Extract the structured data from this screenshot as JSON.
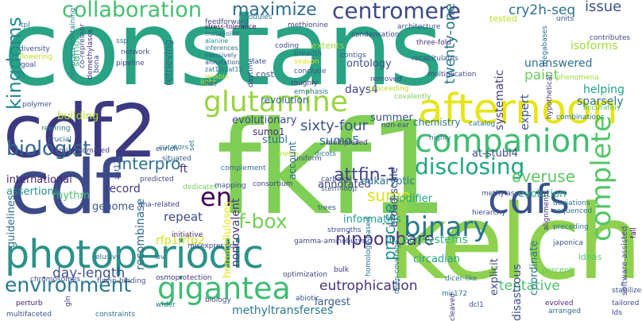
{
  "words": [
    {
      "text": "constans",
      "color": "#29a383"
    },
    {
      "text": "fkf1",
      "color": "#7fce55"
    },
    {
      "text": "kelch",
      "color": "#8fd14f"
    },
    {
      "text": "cdf2",
      "color": "#3b3a80"
    },
    {
      "text": "cdf",
      "color": "#3d4a89"
    },
    {
      "text": "photoperiodic",
      "color": "#2b9189"
    },
    {
      "text": "afternoon",
      "color": "#e7e419"
    },
    {
      "text": "glutamine",
      "color": "#98d43e"
    },
    {
      "text": "companion",
      "color": "#40bc72"
    },
    {
      "text": "cdfs",
      "color": "#3a518b"
    },
    {
      "text": "complete",
      "color": "#54c567"
    },
    {
      "text": "gigantea",
      "color": "#3fbc73"
    },
    {
      "text": "binary",
      "color": "#2a768e"
    },
    {
      "text": "collaboration",
      "color": "#45bf70"
    },
    {
      "text": "centromere",
      "color": "#3e4989"
    },
    {
      "text": "environment",
      "color": "#2a798e"
    },
    {
      "text": "maximize",
      "color": "#2e6d8e"
    },
    {
      "text": "kingdoms",
      "color": "#23898e"
    },
    {
      "text": "biologist",
      "color": "#31668e"
    },
    {
      "text": "disclosing",
      "color": "#21a585"
    },
    {
      "text": "f-box",
      "color": "#73d055"
    },
    {
      "text": "nipponbare",
      "color": "#46307e"
    },
    {
      "text": "issue",
      "color": "#3b518b"
    },
    {
      "text": "cry2h-seq",
      "color": "#2c728e"
    },
    {
      "text": "sumo",
      "color": "#d8e219"
    },
    {
      "text": "attfin-1",
      "color": "#414287"
    },
    {
      "text": "en",
      "color": "#440154"
    },
    {
      "text": "interpro",
      "color": "#2d708e"
    },
    {
      "text": "sixty-four",
      "color": "#3a548c"
    },
    {
      "text": "day-length",
      "color": "#3b528b"
    },
    {
      "text": "eutrophication",
      "color": "#46327e"
    },
    {
      "text": "tentative",
      "color": "#4ac16d"
    },
    {
      "text": "overuse",
      "color": "#5cc863"
    },
    {
      "text": "ontology",
      "color": "#3d4e8a"
    },
    {
      "text": "evolutionary",
      "color": "#3f4889"
    },
    {
      "text": "precise",
      "color": "#20938c"
    },
    {
      "text": "paint",
      "color": "#6ccd5a"
    },
    {
      "text": "sumo5",
      "color": "#2d708e"
    },
    {
      "text": "international",
      "color": "#482173"
    },
    {
      "text": "repeat",
      "color": "#3e4a89"
    },
    {
      "text": "methyltransferses",
      "color": "#2a788e"
    },
    {
      "text": "ecosystems",
      "color": "#31b57b"
    },
    {
      "text": "informatics",
      "color": "#1f9e89"
    },
    {
      "text": "noncovalent",
      "color": "#453781"
    },
    {
      "text": "twenty-one",
      "color": "#2a788e"
    },
    {
      "text": "days4",
      "color": "#404588"
    },
    {
      "text": "isoforms",
      "color": "#a0da39"
    },
    {
      "text": "unanswered",
      "color": "#2d708e"
    },
    {
      "text": "systematic",
      "color": "#443b84"
    },
    {
      "text": "helping",
      "color": "#1fa088"
    },
    {
      "text": "sparsely",
      "color": "#2c738e"
    },
    {
      "text": "expert",
      "color": "#3b528b"
    },
    {
      "text": "at-stubl4",
      "color": "#3e4c8a"
    },
    {
      "text": "modifier",
      "color": "#22a785"
    },
    {
      "text": "stubl",
      "color": "#2c728e"
    },
    {
      "text": "sumo1",
      "color": "#472a7a"
    },
    {
      "text": "summer",
      "color": "#3b528b"
    },
    {
      "text": "genome",
      "color": "#38588c"
    },
    {
      "text": "rhythm",
      "color": "#4ac16d"
    },
    {
      "text": "record",
      "color": "#453581"
    },
    {
      "text": "recombinase",
      "color": "#2f6b8e"
    },
    {
      "text": "assertions",
      "color": "#21918c"
    },
    {
      "text": "guidelines",
      "color": "#2c718e"
    },
    {
      "text": "circadian",
      "color": "#20a386"
    },
    {
      "text": "disastrous",
      "color": "#3d4e8a"
    },
    {
      "text": "coordinate",
      "color": "#297a8e"
    },
    {
      "text": "largest",
      "color": "#38598c"
    },
    {
      "text": "explicit",
      "color": "#3f4788"
    },
    {
      "text": "annotated",
      "color": "#433d84"
    },
    {
      "text": "eukaryotic",
      "color": "#2b758e"
    },
    {
      "text": "broad-scale",
      "color": "#404588"
    },
    {
      "text": "evolution",
      "color": "#29af7f"
    },
    {
      "text": "building",
      "color": "#b5de2b"
    },
    {
      "text": "revolution",
      "color": "#34618d"
    },
    {
      "text": "retrieving",
      "color": "#31668e"
    },
    {
      "text": "extents",
      "color": "#98d83e"
    },
    {
      "text": "account",
      "color": "#2f6c8e"
    },
    {
      "text": "ft",
      "color": "#46327e"
    },
    {
      "text": "rfp1/rfp2",
      "color": "#d2e21b"
    },
    {
      "text": "hemicelluloses",
      "color": "#e2e418"
    },
    {
      "text": "sumo3",
      "color": "#35b779"
    },
    {
      "text": "tested",
      "color": "#c2df23"
    },
    {
      "text": "chemistry",
      "color": "#2a788e"
    },
    {
      "text": "ideas",
      "color": "#54c568"
    },
    {
      "text": "percent",
      "color": "#5ec962"
    },
    {
      "text": "tailored",
      "color": "#3d4d8a"
    },
    {
      "text": "fall",
      "color": "#440154"
    },
    {
      "text": "stabilizes",
      "color": "#3b528b"
    },
    {
      "text": "software-assisted",
      "color": "#3e4989"
    },
    {
      "text": "lds",
      "color": "#404588"
    },
    {
      "text": "evolved",
      "color": "#472c7a"
    },
    {
      "text": "arranged",
      "color": "#31688e"
    },
    {
      "text": "japonica",
      "color": "#3a548c"
    },
    {
      "text": "preceding",
      "color": "#2a768e"
    },
    {
      "text": "sequenced",
      "color": "#2a768e"
    },
    {
      "text": "deviations",
      "color": "#2a788e"
    },
    {
      "text": "combinations",
      "color": "#2b748e"
    },
    {
      "text": "accurately",
      "color": "#5ec962"
    },
    {
      "text": "phenomena",
      "color": "#9fda3a"
    },
    {
      "text": "hypothetical",
      "color": "#46327e"
    },
    {
      "text": "contributes",
      "color": "#3e4a89"
    },
    {
      "text": "megabases",
      "color": "#2c728e"
    },
    {
      "text": "units",
      "color": "#3b528b"
    },
    {
      "text": "stress-tolerance",
      "color": "#440154"
    },
    {
      "text": "catalog",
      "color": "#2a788e"
    },
    {
      "text": "methylases",
      "color": "#3b528b"
    },
    {
      "text": "hierarchy",
      "color": "#3e4989"
    },
    {
      "text": "alignments",
      "color": "#46307e"
    },
    {
      "text": "diversity",
      "color": "#3b518b"
    },
    {
      "text": "flowering",
      "color": "#bddf26"
    },
    {
      "text": "goal",
      "color": "#3d4e8a"
    },
    {
      "text": "tpl",
      "color": "#2a768e"
    },
    {
      "text": "metabolite",
      "color": "#2c718e"
    },
    {
      "text": "polymer",
      "color": "#3b528b"
    },
    {
      "text": "rewiring",
      "color": "#2a788e"
    },
    {
      "text": "crucial",
      "color": "#2f6b8e"
    },
    {
      "text": "semi-automated",
      "color": "#433e85"
    },
    {
      "text": "chromosomes",
      "color": "#3e4a89"
    },
    {
      "text": "perturb",
      "color": "#482173"
    },
    {
      "text": "multifaceted",
      "color": "#3b528b"
    },
    {
      "text": "constraints",
      "color": "#2d718e"
    },
    {
      "text": "flavin-binding",
      "color": "#3b528b"
    },
    {
      "text": "osmoprotection",
      "color": "#46317e"
    },
    {
      "text": "alanine",
      "color": "#21918c"
    },
    {
      "text": "elusive",
      "color": "#2e6e8e"
    },
    {
      "text": "dedicates",
      "color": "#75d054"
    },
    {
      "text": "inferences",
      "color": "#2d708e"
    },
    {
      "text": "situated",
      "color": "#38598c"
    },
    {
      "text": "curators",
      "color": "#2a788e"
    },
    {
      "text": "dna-related",
      "color": "#404588"
    },
    {
      "text": "predicted",
      "color": "#3e4a89"
    },
    {
      "text": "initiative",
      "color": "#472d7b"
    },
    {
      "text": "complement",
      "color": "#2f6b8e"
    },
    {
      "text": "mapping",
      "color": "#3b528b"
    },
    {
      "text": "massively",
      "color": "#34618d"
    },
    {
      "text": "ssp",
      "color": "#2c728e"
    },
    {
      "text": "pipeline",
      "color": "#3e4a89"
    },
    {
      "text": "network",
      "color": "#3b528b"
    },
    {
      "text": "feedforward",
      "color": "#3e4a89"
    },
    {
      "text": "methionine",
      "color": "#404588"
    },
    {
      "text": "condensation",
      "color": "#3e4989"
    },
    {
      "text": "architecture",
      "color": "#3b528b"
    },
    {
      "text": "coding",
      "color": "#3e4a89"
    },
    {
      "text": "breadth",
      "color": "#31688e"
    },
    {
      "text": "roughly",
      "color": "#443983"
    },
    {
      "text": "cost",
      "color": "#3b528b"
    },
    {
      "text": "emphasis",
      "color": "#2a788e"
    },
    {
      "text": "removed",
      "color": "#3e4989"
    },
    {
      "text": "covalently",
      "color": "#7ad151"
    },
    {
      "text": "proceeding",
      "color": "#bade28"
    },
    {
      "text": "contigs",
      "color": "#3b528b"
    },
    {
      "text": "three-fold",
      "color": "#46327e"
    },
    {
      "text": "non-ear",
      "color": "#3e4a89"
    },
    {
      "text": "highly",
      "color": "#2a788e"
    },
    {
      "text": "multiplexed",
      "color": "#46327e"
    },
    {
      "text": "dicots",
      "color": "#2a788e"
    },
    {
      "text": "yields",
      "color": "#bade28"
    },
    {
      "text": "uniform",
      "color": "#3b528b"
    },
    {
      "text": "consortium",
      "color": "#404588"
    },
    {
      "text": "strengths",
      "color": "#3b528b"
    },
    {
      "text": "bulk",
      "color": "#46327e"
    },
    {
      "text": "optimization",
      "color": "#404588"
    },
    {
      "text": "gamma-aminobutyric",
      "color": "#3e4a89"
    },
    {
      "text": "trees",
      "color": "#3b528b"
    },
    {
      "text": "carboxyl",
      "color": "#3e4a89"
    },
    {
      "text": "stem-loop",
      "color": "#3b528b"
    },
    {
      "text": "homology-based",
      "color": "#2c718e"
    },
    {
      "text": "deep-coverage",
      "color": "#2a788e"
    },
    {
      "text": "dicer-like",
      "color": "#2c718e"
    },
    {
      "text": "mir172",
      "color": "#2a788e"
    },
    {
      "text": "cleaved",
      "color": "#46327e"
    },
    {
      "text": "dcl1",
      "color": "#3b528b"
    },
    {
      "text": "wider",
      "color": "#2a788e"
    },
    {
      "text": "biology",
      "color": "#3e4a89"
    },
    {
      "text": "abiotic",
      "color": "#3b528b"
    },
    {
      "text": "misexpression",
      "color": "#404588"
    },
    {
      "text": "enrich",
      "color": "#3b528b"
    },
    {
      "text": "lov",
      "color": "#2a788e"
    },
    {
      "text": "light",
      "color": "#bade28"
    },
    {
      "text": "late",
      "color": "#3e4a89"
    },
    {
      "text": "conclude",
      "color": "#3b528b"
    },
    {
      "text": "season",
      "color": "#dde318"
    },
    {
      "text": "set",
      "color": "#2a788e"
    },
    {
      "text": "zat12",
      "color": "#3e4a89"
    },
    {
      "text": "modules",
      "color": "#2a788e"
    },
    {
      "text": "daytime",
      "color": "#404588"
    },
    {
      "text": "recapitulates",
      "color": "#3b528b"
    },
    {
      "text": "nitrogen-containing",
      "color": "#2a788e"
    },
    {
      "text": "demethylases",
      "color": "#46307e"
    },
    {
      "text": "co-repressor",
      "color": "#3e4a89"
    },
    {
      "text": "bona",
      "color": "#3e4a89"
    },
    {
      "text": "gln",
      "color": "#46327e"
    },
    {
      "text": "multiplication",
      "color": "#3e4a89"
    },
    {
      "text": "annotation",
      "color": "#3b528b"
    },
    {
      "text": "zat10/zat12",
      "color": "#2c718e"
    },
    {
      "text": "reliable",
      "color": "#bade28"
    },
    {
      "text": "fide",
      "color": "#3b528b"
    }
  ]
}
